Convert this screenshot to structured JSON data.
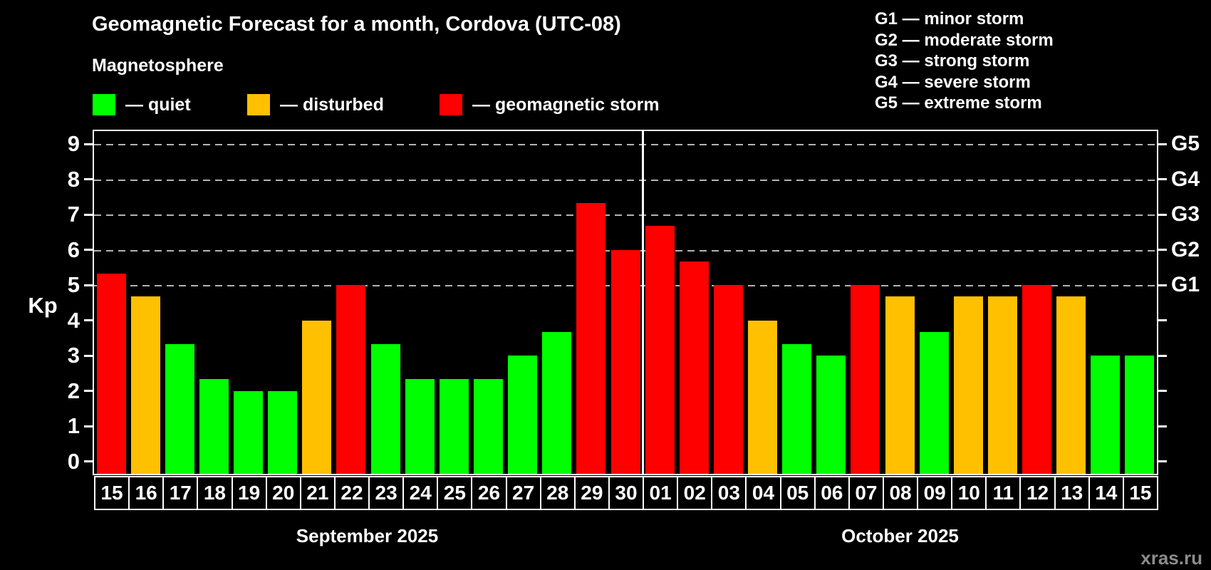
{
  "title": "Geomagnetic Forecast for a month, Cordova (UTC-08)",
  "subtitle": "Magnetosphere",
  "watermark": "xras.ru",
  "legend": [
    {
      "key": "quiet",
      "label": "— quiet"
    },
    {
      "key": "disturbed",
      "label": "— disturbed"
    },
    {
      "key": "storm",
      "label": "— geomagnetic storm"
    }
  ],
  "storm_scale_legend": [
    "G1 — minor storm",
    "G2 — moderate storm",
    "G3 — strong storm",
    "G4 — severe storm",
    "G5 — extreme storm"
  ],
  "chart_data": {
    "type": "bar",
    "title": "Geomagnetic Forecast for a month, Cordova (UTC-08)",
    "ylabel": "Kp",
    "ylim": [
      0,
      9
    ],
    "yticks": [
      0,
      1,
      2,
      3,
      4,
      5,
      6,
      7,
      8,
      9
    ],
    "grid": true,
    "gridlines_at_kp": [
      5,
      6,
      7,
      8,
      9
    ],
    "right_axis_labels": [
      {
        "kp": 5,
        "label": "G1"
      },
      {
        "kp": 6,
        "label": "G2"
      },
      {
        "kp": 7,
        "label": "G3"
      },
      {
        "kp": 8,
        "label": "G4"
      },
      {
        "kp": 9,
        "label": "G5"
      }
    ],
    "status_colors": {
      "quiet": "#00ff00",
      "disturbed": "#ffc000",
      "storm": "#ff0000"
    },
    "sections": [
      {
        "month_key": "sep",
        "month_label": "September 2025",
        "bars": [
          {
            "day": "15",
            "kp": 5.33,
            "status": "storm"
          },
          {
            "day": "16",
            "kp": 4.67,
            "status": "disturbed"
          },
          {
            "day": "17",
            "kp": 3.33,
            "status": "quiet"
          },
          {
            "day": "18",
            "kp": 2.33,
            "status": "quiet"
          },
          {
            "day": "19",
            "kp": 2.0,
            "status": "quiet"
          },
          {
            "day": "20",
            "kp": 2.0,
            "status": "quiet"
          },
          {
            "day": "21",
            "kp": 4.0,
            "status": "disturbed"
          },
          {
            "day": "22",
            "kp": 5.0,
            "status": "storm"
          },
          {
            "day": "23",
            "kp": 3.33,
            "status": "quiet"
          },
          {
            "day": "24",
            "kp": 2.33,
            "status": "quiet"
          },
          {
            "day": "25",
            "kp": 2.33,
            "status": "quiet"
          },
          {
            "day": "26",
            "kp": 2.33,
            "status": "quiet"
          },
          {
            "day": "27",
            "kp": 3.0,
            "status": "quiet"
          },
          {
            "day": "28",
            "kp": 3.67,
            "status": "quiet"
          },
          {
            "day": "29",
            "kp": 7.33,
            "status": "storm"
          },
          {
            "day": "30",
            "kp": 6.0,
            "status": "storm"
          }
        ]
      },
      {
        "month_key": "oct",
        "month_label": "October 2025",
        "bars": [
          {
            "day": "01",
            "kp": 6.67,
            "status": "storm"
          },
          {
            "day": "02",
            "kp": 5.67,
            "status": "storm"
          },
          {
            "day": "03",
            "kp": 5.0,
            "status": "storm"
          },
          {
            "day": "04",
            "kp": 4.0,
            "status": "disturbed"
          },
          {
            "day": "05",
            "kp": 3.33,
            "status": "quiet"
          },
          {
            "day": "06",
            "kp": 3.0,
            "status": "quiet"
          },
          {
            "day": "07",
            "kp": 5.0,
            "status": "storm"
          },
          {
            "day": "08",
            "kp": 4.67,
            "status": "disturbed"
          },
          {
            "day": "09",
            "kp": 3.67,
            "status": "quiet"
          },
          {
            "day": "10",
            "kp": 4.67,
            "status": "disturbed"
          },
          {
            "day": "11",
            "kp": 4.67,
            "status": "disturbed"
          },
          {
            "day": "12",
            "kp": 5.0,
            "status": "storm"
          },
          {
            "day": "13",
            "kp": 4.67,
            "status": "disturbed"
          },
          {
            "day": "14",
            "kp": 3.0,
            "status": "quiet"
          },
          {
            "day": "15",
            "kp": 3.0,
            "status": "quiet"
          }
        ]
      }
    ]
  }
}
